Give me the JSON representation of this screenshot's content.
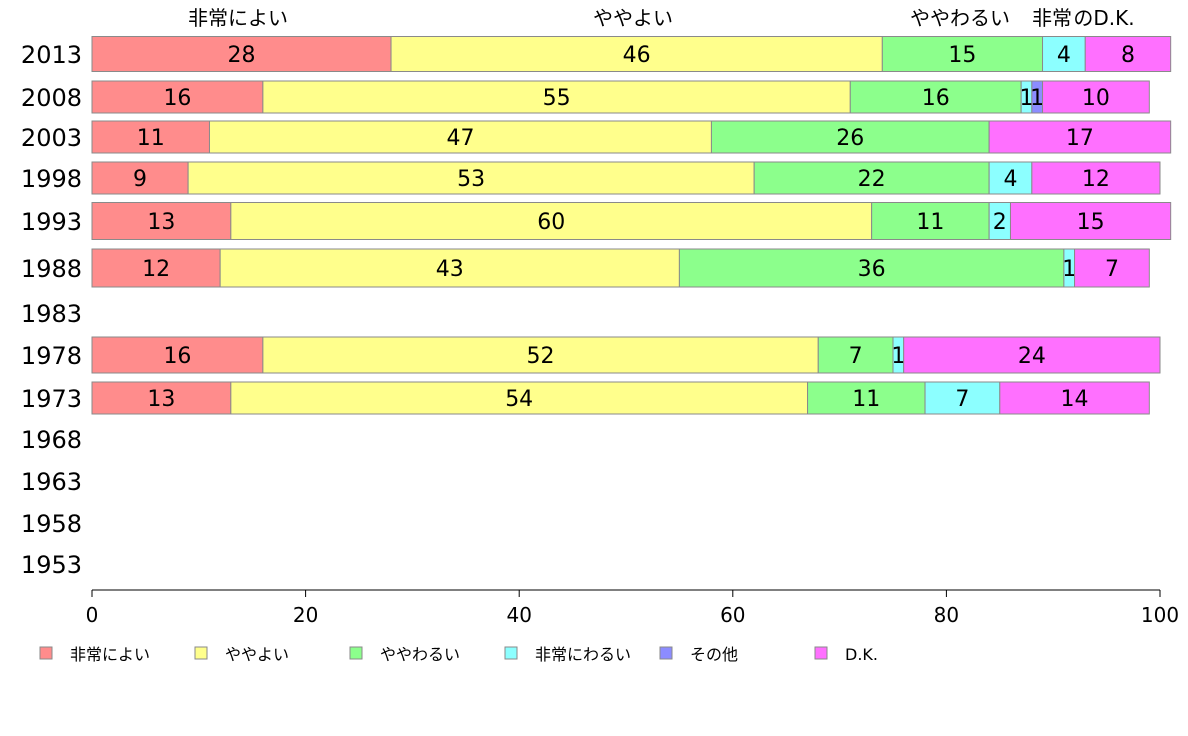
{
  "chart_data": {
    "type": "bar",
    "orientation": "horizontal",
    "stacked": true,
    "categories": [
      "2013",
      "2008",
      "2003",
      "1998",
      "1993",
      "1988",
      "1983",
      "1978",
      "1973",
      "1968",
      "1963",
      "1958",
      "1953"
    ],
    "series": [
      {
        "name": "非常によい",
        "color": "#ff8c8c",
        "values": [
          28,
          16,
          11,
          9,
          13,
          12,
          null,
          16,
          13,
          null,
          null,
          null,
          null
        ]
      },
      {
        "name": "ややよい",
        "color": "#ffff8c",
        "values": [
          46,
          55,
          47,
          53,
          60,
          43,
          null,
          52,
          54,
          null,
          null,
          null,
          null
        ]
      },
      {
        "name": "ややわるい",
        "color": "#8cff8c",
        "values": [
          15,
          16,
          26,
          22,
          11,
          36,
          null,
          7,
          11,
          null,
          null,
          null,
          null
        ]
      },
      {
        "name": "非常にわるい",
        "color": "#8cffff",
        "values": [
          4,
          1,
          0,
          4,
          2,
          1,
          null,
          1,
          7,
          null,
          null,
          null,
          null
        ]
      },
      {
        "name": "その他",
        "color": "#8c8cff",
        "values": [
          0,
          1,
          0,
          0,
          0,
          0,
          null,
          0,
          0,
          null,
          null,
          null,
          null
        ]
      },
      {
        "name": "D.K.",
        "color": "#ff70ff",
        "values": [
          8,
          10,
          17,
          12,
          15,
          7,
          null,
          24,
          14,
          null,
          null,
          null,
          null
        ]
      }
    ],
    "top_labels": [
      "非常によい",
      "ややよい",
      "ややわるい",
      "非常",
      "のD.K."
    ],
    "xlim": [
      0,
      100
    ],
    "xticks": [
      0,
      20,
      40,
      60,
      80,
      100
    ],
    "legend_position": "bottom"
  }
}
